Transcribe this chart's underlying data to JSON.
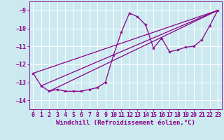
{
  "background_color": "#cce9f0",
  "grid_color": "#ffffff",
  "line_color": "#880088",
  "xlabel": "Windchill (Refroidissement éolien,°C)",
  "xlabel_fontsize": 6.5,
  "tick_fontsize": 6,
  "ylim": [
    -14.5,
    -8.5
  ],
  "xlim": [
    -0.5,
    23.5
  ],
  "yticks": [
    -14,
    -13,
    -12,
    -11,
    -10,
    -9
  ],
  "xticks": [
    0,
    1,
    2,
    3,
    4,
    5,
    6,
    7,
    8,
    9,
    10,
    11,
    12,
    13,
    14,
    15,
    16,
    17,
    18,
    19,
    20,
    21,
    22,
    23
  ],
  "series": [
    [
      0,
      -12.5
    ],
    [
      1,
      -13.2
    ],
    [
      2,
      -13.5
    ],
    [
      3,
      -13.4
    ],
    [
      4,
      -13.5
    ],
    [
      5,
      -13.5
    ],
    [
      6,
      -13.5
    ],
    [
      7,
      -13.4
    ],
    [
      8,
      -13.3
    ],
    [
      9,
      -13.0
    ],
    [
      10,
      -11.5
    ],
    [
      11,
      -10.2
    ],
    [
      12,
      -9.15
    ],
    [
      13,
      -9.35
    ],
    [
      14,
      -9.8
    ],
    [
      15,
      -11.1
    ],
    [
      16,
      -10.55
    ],
    [
      17,
      -11.3
    ],
    [
      18,
      -11.2
    ],
    [
      19,
      -11.05
    ],
    [
      20,
      -11.0
    ],
    [
      21,
      -10.65
    ],
    [
      22,
      -9.85
    ],
    [
      23,
      -9.0
    ]
  ],
  "trend_lines": [
    [
      [
        0,
        -12.5
      ],
      [
        23,
        -9.0
      ]
    ],
    [
      [
        1,
        -13.2
      ],
      [
        23,
        -9.0
      ]
    ],
    [
      [
        2,
        -13.5
      ],
      [
        23,
        -9.0
      ]
    ]
  ]
}
